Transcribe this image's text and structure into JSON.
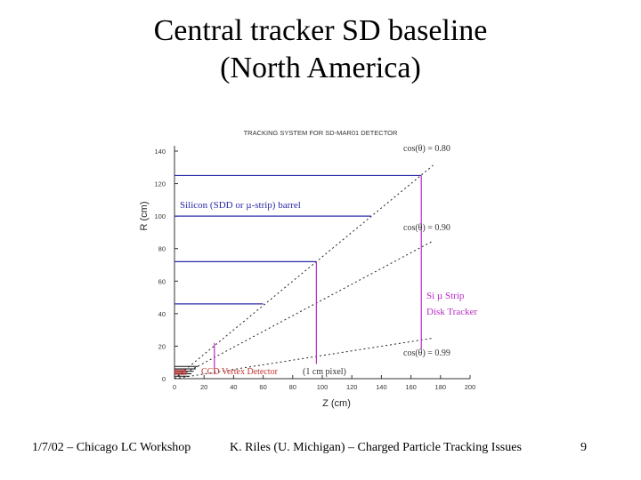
{
  "slide": {
    "title_line1": "Central tracker SD baseline",
    "title_line2": "(North America)",
    "footer_left": "1/7/02 – Chicago LC Workshop",
    "footer_center": "K. Riles (U. Michigan) – Charged Particle Tracking Issues",
    "page_number": "9"
  },
  "figure": {
    "heading": "TRACKING SYSTEM FOR SD-MAR01 DETECTOR",
    "x_axis_label": "Z (cm)",
    "y_axis_label": "R (cm)",
    "x_range": [
      0,
      200
    ],
    "y_range": [
      0,
      140
    ],
    "x_ticks": [
      "0",
      "20",
      "40",
      "60",
      "80",
      "100",
      "120",
      "140",
      "160",
      "180",
      "200"
    ],
    "y_ticks": [
      "0",
      "20",
      "40",
      "60",
      "80",
      "100",
      "120",
      "140"
    ],
    "labels": {
      "barrel": "Silicon (SDD or µ-strip) barrel",
      "disk_line1": "Si µ Strip",
      "disk_line2": "Disk Tracker",
      "vertex": "CCD Vertex Detector",
      "vertex_note": "(1 cm pixel)",
      "cos080": "cos(θ) = 0.80",
      "cos090": "cos(θ) = 0.90",
      "cos099": "cos(θ) = 0.99"
    },
    "colors": {
      "barrel": "#2a2aa8",
      "disk": "#b62cc2",
      "vertex": "#c23232",
      "axis": "#333333"
    },
    "barrel_layers": [
      {
        "r_cm": 125,
        "z_cm": 167
      },
      {
        "r_cm": 100,
        "z_cm": 133
      },
      {
        "r_cm": 72,
        "z_cm": 96
      },
      {
        "r_cm": 46,
        "z_cm": 60
      }
    ],
    "disks": [
      {
        "z_cm": 167,
        "r_min_cm": 18,
        "r_max_cm": 125
      },
      {
        "z_cm": 96,
        "r_min_cm": 9,
        "r_max_cm": 72
      },
      {
        "z_cm": 27,
        "r_min_cm": 3,
        "r_max_cm": 22
      }
    ],
    "cos_lines": [
      {
        "key": "cos080",
        "value": 0.8,
        "z_end_cm": 175
      },
      {
        "key": "cos090",
        "value": 0.9,
        "z_end_cm": 175
      },
      {
        "key": "cos099",
        "value": 0.99,
        "z_end_cm": 175
      }
    ]
  }
}
